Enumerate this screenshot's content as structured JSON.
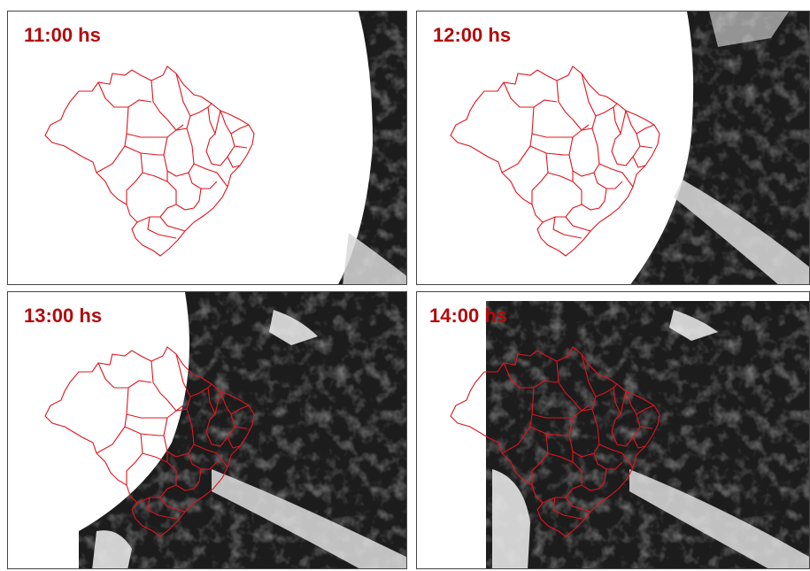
{
  "panels": [
    {
      "id": "p1",
      "time_label": "11:00 hs"
    },
    {
      "id": "p2",
      "time_label": "12:00 hs"
    },
    {
      "id": "p3",
      "time_label": "13:00 hs"
    },
    {
      "id": "p4",
      "time_label": "14:00 hs"
    }
  ],
  "colors": {
    "label": "#b40a0a",
    "border_lines": "#e0141e",
    "satellite_dark": "#1b1b1b",
    "clouds": "#e8e8e8",
    "background": "#ffffff"
  }
}
